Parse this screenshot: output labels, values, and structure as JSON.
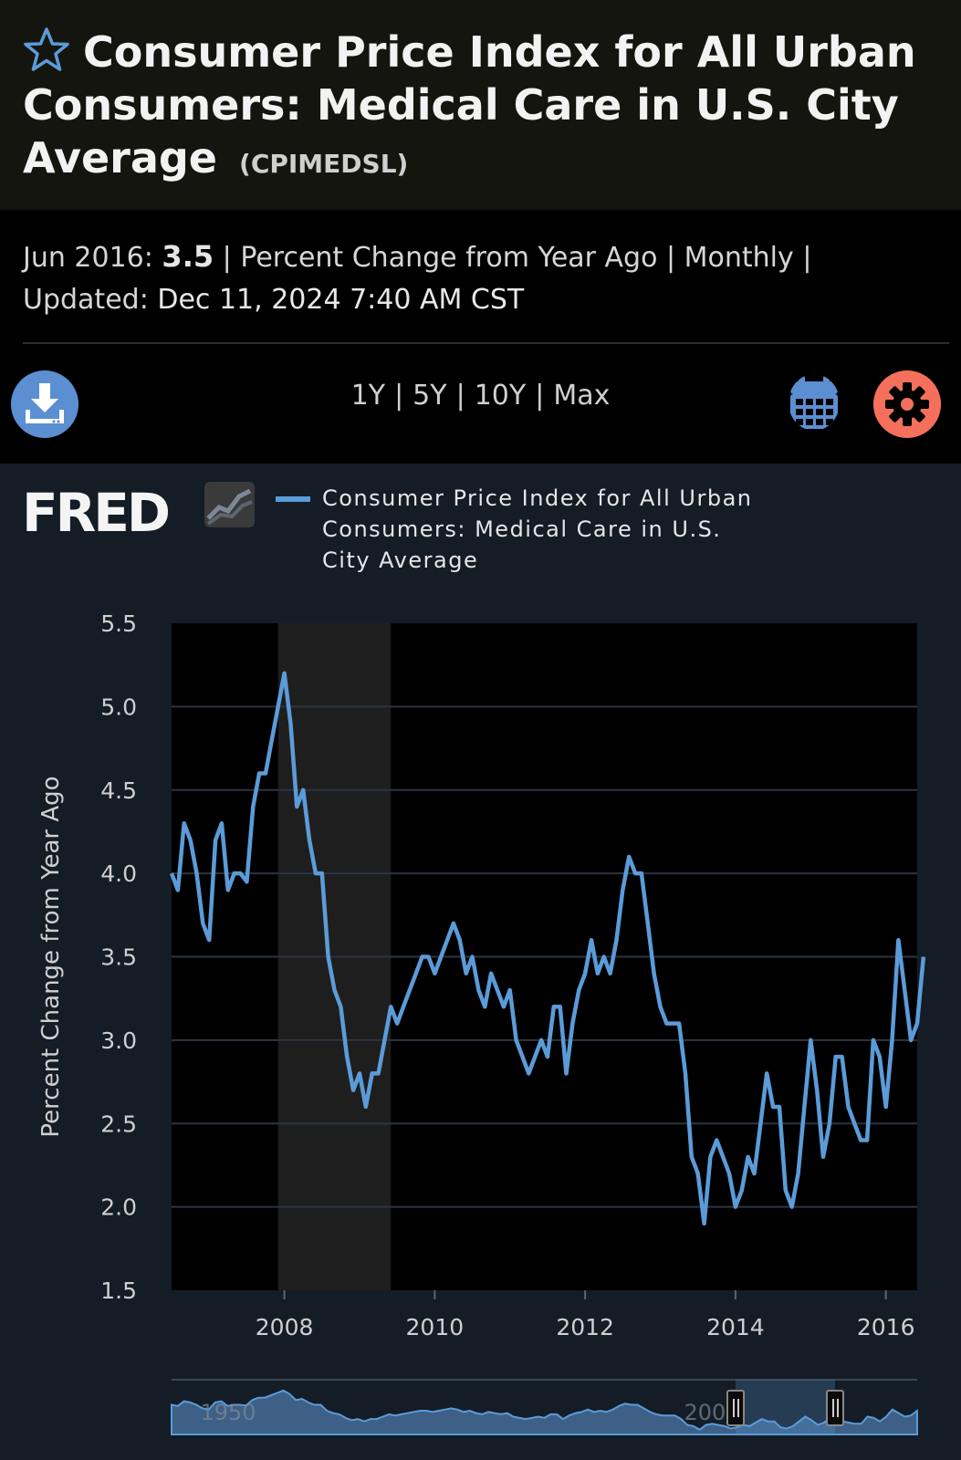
{
  "header": {
    "title": "Consumer Price Index for All Urban Consumers: Medical Care in U.S. City Average",
    "series_id": "(CPIMEDSL)"
  },
  "meta": {
    "date_label": "Jun 2016:",
    "value": "3.5",
    "units": "Percent Change from Year Ago",
    "frequency": "Monthly",
    "updated_label": "Updated:",
    "updated_value": "Dec 11, 2024 7:40 AM CST"
  },
  "toolbar": {
    "ranges": [
      "1Y",
      "5Y",
      "10Y",
      "Max"
    ]
  },
  "colors": {
    "line": "#5b9bd8",
    "download": "#5b8fd1",
    "settings": "#f5705c",
    "recession": "#1e1e1e"
  },
  "brand": "FRED",
  "chart_data": {
    "type": "line",
    "ylabel": "Percent Change from Year Ago",
    "ylim": [
      1.5,
      5.5
    ],
    "yticks": [
      "1.5",
      "2.0",
      "2.5",
      "3.0",
      "3.5",
      "4.0",
      "4.5",
      "5.0",
      "5.5"
    ],
    "xticks": [
      "2008",
      "2010",
      "2012",
      "2014",
      "2016"
    ],
    "xlim": [
      "2006-07",
      "2016-06"
    ],
    "recession": [
      "2007-12",
      "2009-06"
    ],
    "grid": true,
    "legend": "top",
    "series": [
      {
        "name": "Consumer Price Index for All Urban Consumers: Medical Care in U.S. City Average",
        "start": "2006-07",
        "frequency": "monthly",
        "values": [
          4.0,
          3.9,
          4.3,
          4.2,
          4.0,
          3.7,
          3.6,
          4.2,
          4.3,
          3.9,
          4.0,
          4.0,
          3.95,
          4.4,
          4.6,
          4.6,
          4.8,
          5.0,
          5.2,
          4.9,
          4.4,
          4.5,
          4.2,
          4.0,
          4.0,
          3.5,
          3.3,
          3.2,
          2.9,
          2.7,
          2.8,
          2.6,
          2.8,
          2.8,
          3.0,
          3.2,
          3.1,
          3.2,
          3.3,
          3.4,
          3.5,
          3.5,
          3.4,
          3.5,
          3.6,
          3.7,
          3.6,
          3.4,
          3.5,
          3.3,
          3.2,
          3.4,
          3.3,
          3.2,
          3.3,
          3.0,
          2.9,
          2.8,
          2.9,
          3.0,
          2.9,
          3.2,
          3.2,
          2.8,
          3.1,
          3.3,
          3.4,
          3.6,
          3.4,
          3.5,
          3.4,
          3.6,
          3.9,
          4.1,
          4.0,
          4.0,
          3.7,
          3.4,
          3.2,
          3.1,
          3.1,
          3.1,
          2.8,
          2.3,
          2.2,
          1.9,
          2.3,
          2.4,
          2.3,
          2.2,
          2.0,
          2.1,
          2.3,
          2.2,
          2.5,
          2.8,
          2.6,
          2.6,
          2.1,
          2.0,
          2.2,
          2.6,
          3.0,
          2.7,
          2.3,
          2.5,
          2.9,
          2.9,
          2.6,
          2.5,
          2.4,
          2.4,
          3.0,
          2.9,
          2.6,
          3.0,
          3.6,
          3.3,
          3.0,
          3.1,
          3.5
        ]
      }
    ],
    "navigator": {
      "xticks": [
        "1950",
        "2000"
      ]
    }
  }
}
